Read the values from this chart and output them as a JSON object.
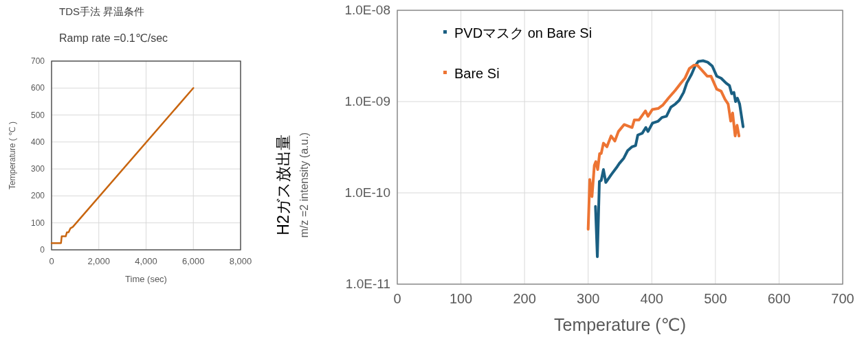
{
  "chart_data": [
    {
      "type": "line",
      "title": "TDS手法  昇温条件",
      "subtitle": "Ramp rate =0.1℃/sec",
      "xlabel": "Time (sec)",
      "ylabel": "Temperature ( ℃ )",
      "xlim": [
        0,
        8000
      ],
      "xticks": [
        0,
        {
          "value": 2000,
          "label": "2,000"
        },
        {
          "value": 4000,
          "label": "4,000"
        },
        {
          "value": 6000,
          "label": "6,000"
        },
        {
          "value": 8000,
          "label": "8,000"
        }
      ],
      "ylim": [
        0,
        700
      ],
      "yticks": [
        0,
        100,
        200,
        300,
        400,
        500,
        600,
        700
      ],
      "grid": true,
      "legend": false,
      "series": [
        {
          "color": "#c8650f",
          "x": [
            0,
            400,
            430,
            550,
            600,
            650,
            720,
            800,
            900,
            6000
          ],
          "values": [
            25,
            25,
            50,
            50,
            50,
            65,
            65,
            80,
            85,
            600
          ]
        }
      ]
    },
    {
      "type": "line",
      "xlabel": "Temperature (℃)",
      "ylabel": "H2ガス放出量\nm/z =2  intensity (a.u.)",
      "xlim": [
        0,
        700
      ],
      "xticks": [
        0,
        100,
        200,
        300,
        400,
        500,
        600,
        700
      ],
      "ylim": [
        1e-11,
        1e-08
      ],
      "yticks": [
        {
          "value": 1e-11,
          "label": "1.0E-11"
        },
        {
          "value": 1e-10,
          "label": "1.0E-10"
        },
        {
          "value": 1e-09,
          "label": "1.0E-09"
        },
        {
          "value": 1e-08,
          "label": "1.0E-08"
        }
      ],
      "log": "y",
      "grid": true,
      "legend": "top left",
      "series": [
        {
          "name": "PVDマスク on Bare Si",
          "color": "#1a5f82",
          "x": [
            311.5,
            314.4,
            317.6,
            320.5,
            324,
            327.7,
            336.7,
            345.7,
            349,
            356,
            362,
            369,
            374.5,
            378,
            385,
            390.6,
            394,
            401,
            410,
            416,
            423,
            430,
            437,
            443,
            450,
            455,
            462.6,
            468,
            473,
            480.6,
            487.8,
            495,
            502,
            509,
            516.5,
            522,
            525.5,
            529,
            531.6,
            534.5,
            538,
            543.5
          ],
          "values": [
            7.1e-11,
            2e-11,
            1.33e-10,
            1.37e-10,
            1.8e-10,
            1.3e-10,
            1.6e-10,
            1.94e-10,
            2.1e-10,
            2.4e-10,
            2.9e-10,
            3.2e-10,
            3.3e-10,
            4.3e-10,
            4.5e-10,
            5.2e-10,
            4.7e-10,
            5.8e-10,
            6.1e-10,
            6.7e-10,
            6.9e-10,
            8.7e-10,
            9.4e-10,
            1.03e-09,
            1.26e-09,
            1.6e-09,
            2e-09,
            2.45e-09,
            2.75e-09,
            2.8e-09,
            2.7e-09,
            2.45e-09,
            1.9e-09,
            1.8e-09,
            1.6e-09,
            1.5e-09,
            1.22e-09,
            1.26e-09,
            1e-09,
            1.09e-09,
            9.4e-10,
            5.3e-10
          ]
        },
        {
          "name": "Bare Si",
          "color": "#ed7433",
          "x": [
            300,
            302.5,
            306,
            309.7,
            312,
            315,
            318,
            320.5,
            324,
            329.5,
            336,
            342,
            347.5,
            356.5,
            369,
            372.6,
            380,
            390,
            394,
            401,
            410,
            417.6,
            426.6,
            437,
            446,
            452,
            459,
            466,
            471.6,
            478.8,
            487,
            493,
            502,
            509,
            515,
            520,
            524,
            527,
            531,
            534,
            537
          ],
          "values": [
            4e-11,
            1.4e-10,
            9.1e-11,
            2e-10,
            2.2e-10,
            1.8e-10,
            2.7e-10,
            2.7e-10,
            3.5e-10,
            3.2e-10,
            4.2e-10,
            3.7e-10,
            4.7e-10,
            5.6e-10,
            5.2e-10,
            6.3e-10,
            6.3e-10,
            7.9e-10,
            6.9e-10,
            8.2e-10,
            8.4e-10,
            9.2e-10,
            1.1e-09,
            1.33e-09,
            1.6e-09,
            1.8e-09,
            2.3e-09,
            2.5e-09,
            2.5e-09,
            2.2e-09,
            1.9e-09,
            1.9e-09,
            1.37e-09,
            1.3e-09,
            1.06e-09,
            9.4e-10,
            6.1e-10,
            7.5e-10,
            4.2e-10,
            5.5e-10,
            4.2e-10
          ]
        }
      ]
    }
  ]
}
